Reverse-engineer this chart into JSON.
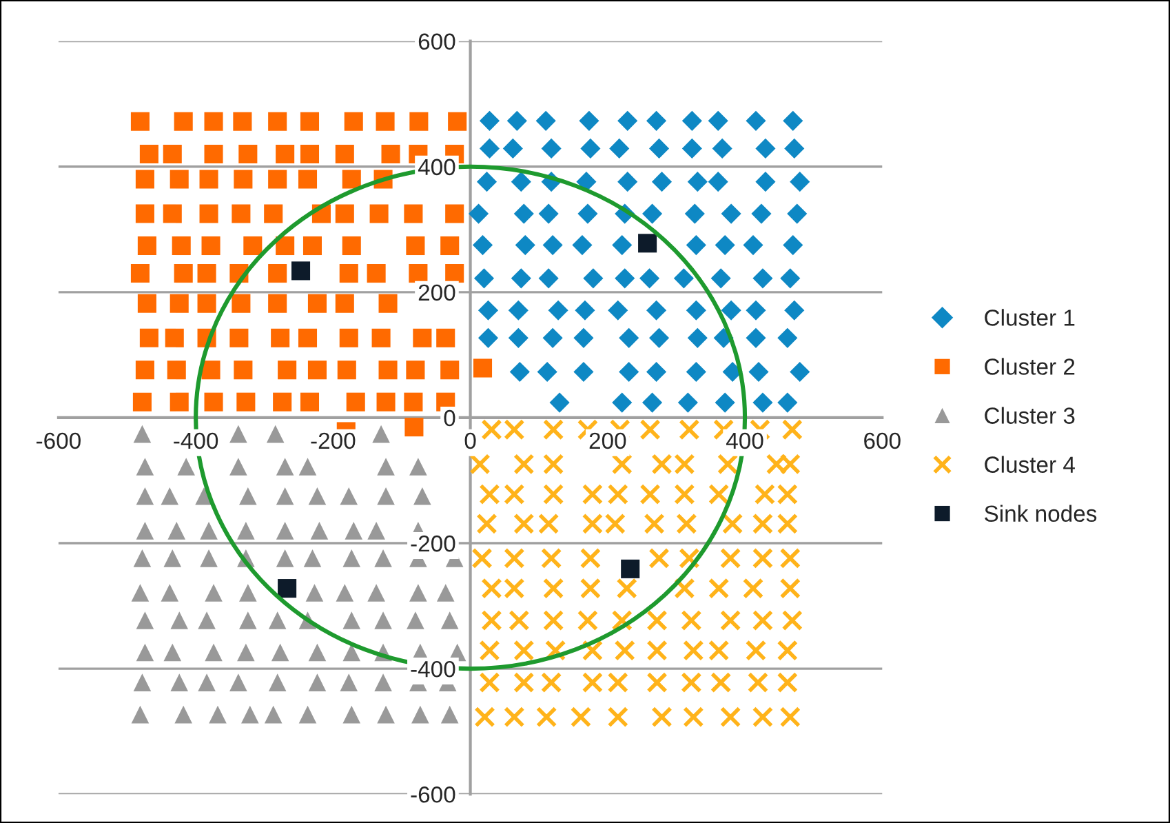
{
  "chart_data": {
    "type": "scatter",
    "xlim": [
      -600,
      600
    ],
    "ylim": [
      -600,
      600
    ],
    "xticks": [
      -600,
      -400,
      -200,
      0,
      200,
      400,
      600
    ],
    "yticks": [
      -600,
      -400,
      -200,
      0,
      200,
      400,
      600
    ],
    "grid": "y",
    "legend": "right",
    "series": [
      {
        "name": "Cluster 1",
        "color": "#0e88c4",
        "marker": "diamond",
        "x": [
          28,
          68,
          110,
          173,
          229,
          271,
          323,
          361,
          416,
          470,
          28,
          62,
          118,
          175,
          217,
          275,
          323,
          367,
          430,
          472,
          24,
          74,
          118,
          169,
          229,
          279,
          331,
          361,
          430,
          480,
          12,
          78,
          114,
          171,
          225,
          265,
          327,
          380,
          424,
          476,
          18,
          80,
          120,
          163,
          221,
          329,
          371,
          412,
          470,
          20,
          74,
          114,
          179,
          225,
          261,
          311,
          365,
          426,
          466,
          26,
          70,
          128,
          167,
          215,
          271,
          329,
          380,
          416,
          472,
          26,
          70,
          120,
          165,
          231,
          275,
          331,
          369,
          416,
          462,
          72,
          112,
          165,
          231,
          271,
          329,
          382,
          420,
          480,
          130,
          221,
          265,
          317,
          371,
          426,
          462
        ],
        "values": [
          473,
          473,
          473,
          473,
          473,
          473,
          473,
          473,
          473,
          473,
          429,
          429,
          429,
          429,
          429,
          429,
          429,
          429,
          429,
          429,
          376,
          376,
          376,
          376,
          376,
          376,
          376,
          376,
          376,
          376,
          325,
          325,
          325,
          325,
          325,
          325,
          325,
          325,
          325,
          325,
          275,
          275,
          275,
          275,
          275,
          275,
          275,
          275,
          275,
          222,
          222,
          222,
          222,
          222,
          222,
          222,
          222,
          222,
          222,
          171,
          171,
          171,
          171,
          171,
          171,
          171,
          171,
          171,
          171,
          127,
          127,
          127,
          127,
          127,
          127,
          127,
          127,
          127,
          127,
          73,
          73,
          73,
          73,
          73,
          73,
          73,
          73,
          73,
          24,
          24,
          24,
          24,
          24,
          24,
          24
        ]
      },
      {
        "name": "Cluster 2",
        "color": "#ff6a00",
        "marker": "square",
        "x": [
          -481,
          -418,
          -374,
          -332,
          -281,
          -234,
          -170,
          -124,
          -75,
          -19,
          -468,
          -434,
          -374,
          -324,
          -270,
          -234,
          -183,
          -116,
          -76,
          -23,
          -474,
          -424,
          -381,
          -331,
          -281,
          -237,
          -173,
          -127,
          -474,
          -434,
          -381,
          -334,
          -287,
          -217,
          -183,
          -133,
          -83,
          -23,
          -471,
          -421,
          -378,
          -317,
          -270,
          -230,
          -173,
          -80,
          -30,
          -481,
          -418,
          -384,
          -337,
          -281,
          -177,
          -137,
          -76,
          -23,
          -471,
          -424,
          -384,
          -334,
          -281,
          -223,
          -183,
          -120,
          -468,
          -431,
          -384,
          -337,
          -277,
          -237,
          -177,
          -130,
          -70,
          -36,
          -474,
          -428,
          -378,
          -331,
          -267,
          -223,
          -180,
          -120,
          -80,
          -30,
          -478,
          -424,
          -374,
          -327,
          -274,
          -234,
          -167,
          -123,
          -83,
          -36,
          -181,
          -82,
          18
        ],
        "values": [
          472,
          472,
          472,
          472,
          472,
          472,
          472,
          472,
          472,
          472,
          420,
          420,
          420,
          420,
          420,
          420,
          420,
          420,
          420,
          420,
          380,
          380,
          380,
          380,
          380,
          380,
          380,
          380,
          325,
          325,
          325,
          325,
          325,
          325,
          325,
          325,
          325,
          325,
          274,
          274,
          274,
          274,
          274,
          274,
          274,
          274,
          274,
          230,
          230,
          230,
          230,
          230,
          230,
          230,
          230,
          230,
          182,
          182,
          182,
          182,
          182,
          182,
          182,
          182,
          127,
          127,
          127,
          127,
          127,
          127,
          127,
          127,
          127,
          127,
          76,
          76,
          76,
          76,
          76,
          76,
          76,
          76,
          76,
          76,
          25,
          25,
          25,
          25,
          25,
          25,
          25,
          25,
          25,
          25,
          -22,
          -15,
          79
        ]
      },
      {
        "name": "Cluster 3",
        "color": "#999999",
        "marker": "triangle",
        "x": [
          -478,
          -338,
          -284,
          -130,
          -474,
          -414,
          -338,
          -270,
          -237,
          -123,
          -76,
          -474,
          -438,
          -388,
          -324,
          -270,
          -223,
          -177,
          -123,
          -70,
          -474,
          -428,
          -381,
          -327,
          -270,
          -220,
          -170,
          -137,
          -76,
          -478,
          -434,
          -381,
          -327,
          -270,
          -230,
          -173,
          -127,
          -76,
          -23,
          -481,
          -438,
          -374,
          -324,
          -227,
          -183,
          -137,
          -76,
          -36,
          -474,
          -424,
          -384,
          -324,
          -281,
          -237,
          -173,
          -127,
          -80,
          -30,
          -474,
          -434,
          -374,
          -327,
          -277,
          -223,
          -173,
          -127,
          -73,
          -19,
          -478,
          -424,
          -384,
          -338,
          -281,
          -223,
          -177,
          -127,
          -76,
          -33,
          -481,
          -418,
          -368,
          -321,
          -287,
          -237,
          -173,
          -123,
          -73,
          -30
        ],
        "values": [
          -26,
          -26,
          -26,
          -26,
          -78,
          -78,
          -78,
          -78,
          -78,
          -78,
          -78,
          -125,
          -125,
          -125,
          -125,
          -125,
          -125,
          -125,
          -125,
          -125,
          -180,
          -180,
          -180,
          -180,
          -180,
          -180,
          -180,
          -180,
          -180,
          -224,
          -224,
          -224,
          -224,
          -224,
          -224,
          -224,
          -224,
          -224,
          -224,
          -279,
          -279,
          -279,
          -279,
          -279,
          -279,
          -279,
          -279,
          -279,
          -323,
          -323,
          -323,
          -323,
          -323,
          -323,
          -323,
          -323,
          -323,
          -323,
          -374,
          -374,
          -374,
          -374,
          -374,
          -374,
          -374,
          -374,
          -374,
          -374,
          -422,
          -422,
          -422,
          -422,
          -422,
          -422,
          -422,
          -422,
          -422,
          -422,
          -473,
          -473,
          -473,
          -473,
          -473,
          -473,
          -473,
          -473,
          -473,
          -473
        ]
      },
      {
        "name": "Cluster 4",
        "color": "#ffb31a",
        "marker": "cross",
        "x": [
          31,
          64,
          121,
          171,
          218,
          262,
          319,
          369,
          422,
          469,
          14,
          78,
          121,
          221,
          279,
          312,
          375,
          446,
          466,
          28,
          64,
          121,
          178,
          215,
          262,
          312,
          362,
          429,
          462,
          24,
          78,
          114,
          178,
          211,
          268,
          315,
          382,
          426,
          462,
          17,
          64,
          118,
          175,
          275,
          319,
          379,
          426,
          466,
          31,
          64,
          121,
          175,
          228,
          312,
          362,
          412,
          466,
          31,
          71,
          121,
          171,
          221,
          272,
          322,
          379,
          426,
          469,
          28,
          78,
          124,
          178,
          225,
          272,
          325,
          362,
          416,
          462,
          28,
          78,
          118,
          178,
          215,
          272,
          322,
          365,
          419,
          462,
          21,
          64,
          111,
          161,
          215,
          279,
          325,
          379,
          426,
          466
        ],
        "values": [
          -19,
          -19,
          -19,
          -19,
          -19,
          -19,
          -19,
          -19,
          -19,
          -19,
          -74,
          -74,
          -74,
          -74,
          -74,
          -74,
          -74,
          -74,
          -74,
          -122,
          -122,
          -122,
          -122,
          -122,
          -122,
          -122,
          -122,
          -122,
          -122,
          -169,
          -169,
          -169,
          -169,
          -169,
          -169,
          -169,
          -169,
          -169,
          -169,
          -224,
          -224,
          -224,
          -224,
          -224,
          -224,
          -224,
          -224,
          -224,
          -272,
          -272,
          -272,
          -272,
          -272,
          -272,
          -272,
          -272,
          -272,
          -323,
          -323,
          -323,
          -323,
          -323,
          -323,
          -323,
          -323,
          -323,
          -323,
          -371,
          -371,
          -371,
          -371,
          -371,
          -371,
          -371,
          -371,
          -371,
          -371,
          -422,
          -422,
          -422,
          -422,
          -422,
          -422,
          -422,
          -422,
          -422,
          -422,
          -477,
          -477,
          -477,
          -477,
          -477,
          -477,
          -477,
          -477,
          -477,
          -477
        ]
      },
      {
        "name": "Sink nodes",
        "color": "#0d1b2a",
        "marker": "square",
        "x": [
          -247,
          258,
          -267,
          233
        ],
        "values": [
          234,
          278,
          -272,
          -241
        ]
      }
    ]
  }
}
